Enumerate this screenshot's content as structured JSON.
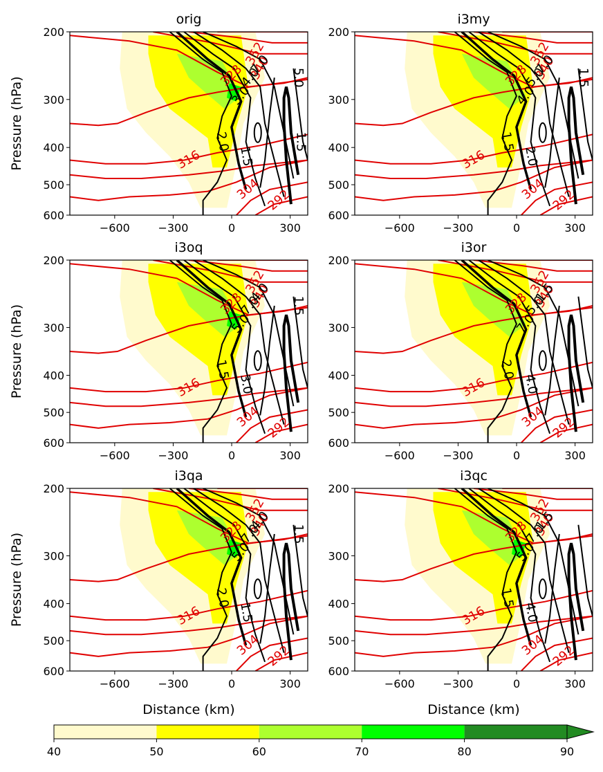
{
  "chart_data": {
    "type": "contour",
    "ylabel": "Pressure (hPa)",
    "xlabel": "Distance (km)",
    "x_ticks": [
      -600,
      -300,
      0,
      300
    ],
    "y_ticks": [
      200,
      300,
      400,
      500,
      600
    ],
    "xlim": [
      -830,
      390
    ],
    "ylim": [
      600,
      200
    ],
    "yscale": "log",
    "colorbar": {
      "levels": [
        40,
        50,
        60,
        70,
        80,
        90
      ],
      "colors": [
        "#fffacd",
        "#ffff00",
        "#adff2f",
        "#00ff00",
        "#228b22"
      ],
      "extend": "max"
    },
    "theta_contour_color": "#e00000",
    "panels": [
      {
        "title": "orig",
        "theta_labels": [
          "316",
          "304",
          "292",
          "352",
          "340",
          "328"
        ],
        "pv_labels": [
          "2.0",
          "1.5",
          "3.0",
          "4.0",
          "7.0",
          "5.0",
          "1.5"
        ]
      },
      {
        "title": "i3my",
        "theta_labels": [
          "316",
          "304",
          "292",
          "352",
          "340",
          "328"
        ],
        "pv_labels": [
          "1.5",
          "2.0",
          "4.0",
          "5.0",
          "7.0",
          "1.5"
        ]
      },
      {
        "title": "i3oq",
        "theta_labels": [
          "316",
          "304",
          "292",
          "352",
          "340",
          "328"
        ],
        "pv_labels": [
          "1.5",
          "3.0",
          "5.0",
          "7.0",
          "4.0",
          "1.5"
        ]
      },
      {
        "title": "i3or",
        "theta_labels": [
          "316",
          "304",
          "292",
          "352",
          "340",
          "328"
        ],
        "pv_labels": [
          "2.0",
          "4.0",
          "7.0",
          "5.0",
          "1.5"
        ]
      },
      {
        "title": "i3qa",
        "theta_labels": [
          "316",
          "304",
          "292",
          "352",
          "340",
          "328"
        ],
        "pv_labels": [
          "2.0",
          "1.5",
          "5.0",
          "7.0",
          "4.0",
          "1.5"
        ]
      },
      {
        "title": "i3qc",
        "theta_labels": [
          "316",
          "304",
          "292",
          "352",
          "340",
          "328"
        ],
        "pv_labels": [
          "1.5",
          "4.0",
          "5.0",
          "7.0",
          "1.5"
        ]
      }
    ]
  }
}
